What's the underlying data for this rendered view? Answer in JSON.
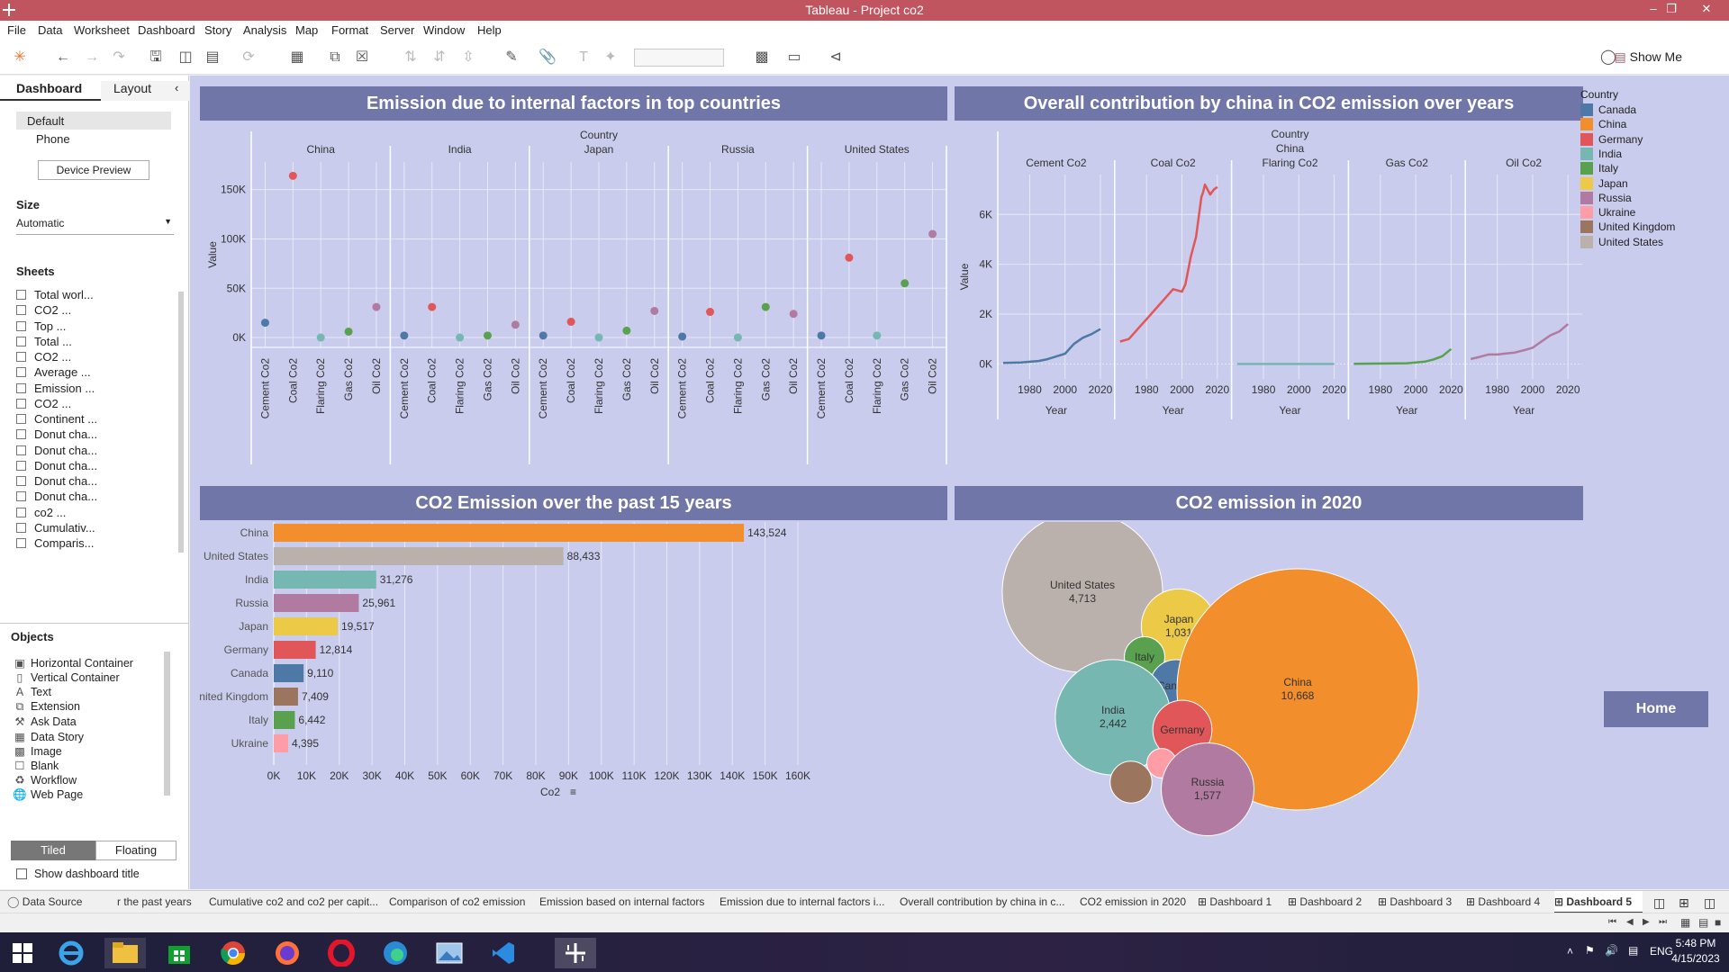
{
  "window": {
    "title": "Tableau - Project co2"
  },
  "menu": [
    "File",
    "Data",
    "Worksheet",
    "Dashboard",
    "Story",
    "Analysis",
    "Map",
    "Format",
    "Server",
    "Window",
    "Help"
  ],
  "toolbar": {
    "show_me": "Show Me"
  },
  "sidebar": {
    "tabs": [
      "Dashboard",
      "Layout"
    ],
    "devices": [
      "Default",
      "Phone"
    ],
    "device_preview": "Device Preview",
    "size_title": "Size",
    "size_value": "Automatic",
    "sheets_title": "Sheets",
    "sheets": [
      "Total worl...",
      "CO2 ...",
      "Top ...",
      "Total ...",
      "CO2 ...",
      "Average ...",
      "Emission ...",
      "CO2 ...",
      "Continent ...",
      "Donut cha...",
      "Donut cha...",
      "Donut cha...",
      "Donut cha...",
      "Donut cha...",
      "co2 ...",
      "Cumulativ...",
      "Comparis..."
    ],
    "objects_title": "Objects",
    "objects": [
      "Horizontal Container",
      "Vertical Container",
      "Text",
      "Extension",
      "Ask Data",
      "Data Story",
      "Image",
      "Blank",
      "Workflow",
      "Web Page"
    ],
    "object_icons": [
      "hbox-icon",
      "vbox-icon",
      "text-icon",
      "extension-icon",
      "ask-data-icon",
      "data-story-icon",
      "image-icon",
      "blank-icon",
      "workflow-icon",
      "web-page-icon"
    ],
    "tiled": "Tiled",
    "floating": "Floating",
    "show_title": "Show dashboard title"
  },
  "panels": {
    "p1_title": "Emission due to internal factors in top countries",
    "p2_title": "Overall contribution by china in CO2 emission over years",
    "p3_title": "CO2 Emission over the past 15 years",
    "p4_title": "CO2 emission in 2020"
  },
  "legend": {
    "title": "Country",
    "items": [
      {
        "name": "Canada",
        "color": "#4e79a7"
      },
      {
        "name": "China",
        "color": "#f28e2b"
      },
      {
        "name": "Germany",
        "color": "#e15759"
      },
      {
        "name": "India",
        "color": "#76b7b2"
      },
      {
        "name": "Italy",
        "color": "#59a14f"
      },
      {
        "name": "Japan",
        "color": "#edc948"
      },
      {
        "name": "Russia",
        "color": "#b07aa1"
      },
      {
        "name": "Ukraine",
        "color": "#ff9da7"
      },
      {
        "name": "United Kingdom",
        "color": "#9c755f"
      },
      {
        "name": "United States",
        "color": "#bab0ac"
      }
    ]
  },
  "home_button": "Home",
  "chart_data": [
    {
      "type": "scatter",
      "title": "Emission due to internal factors in top countries",
      "column_header": "Country",
      "ylabel": "Value",
      "ylim": [
        -10000,
        178000
      ],
      "yticks": [
        "0K",
        "50K",
        "100K",
        "150K"
      ],
      "ytick_values": [
        0,
        50000,
        100000,
        150000
      ],
      "measures": [
        "Cement Co2",
        "Coal Co2",
        "Flaring Co2",
        "Gas Co2",
        "Oil Co2"
      ],
      "measure_colors": [
        "#4e79a7",
        "#e15759",
        "#76b7b2",
        "#59a14f",
        "#b07aa1"
      ],
      "series": [
        {
          "name": "China",
          "values": [
            15000,
            164000,
            0,
            6000,
            31000
          ]
        },
        {
          "name": "India",
          "values": [
            2000,
            31000,
            0,
            2000,
            13000
          ]
        },
        {
          "name": "Japan",
          "values": [
            2000,
            16000,
            0,
            7000,
            27000
          ]
        },
        {
          "name": "Russia",
          "values": [
            1000,
            26000,
            0,
            31000,
            24000
          ]
        },
        {
          "name": "United States",
          "values": [
            2000,
            81000,
            2000,
            55000,
            105000
          ]
        }
      ]
    },
    {
      "type": "line",
      "title": "Overall contribution by china in CO2 emission over years",
      "column_header": "Country",
      "country": "China",
      "ylabel": "Value",
      "xlabel": "Year",
      "ylim": [
        -600,
        7600
      ],
      "yticks": [
        "0K",
        "2K",
        "4K",
        "6K"
      ],
      "ytick_values": [
        0,
        2000,
        4000,
        6000
      ],
      "xlim": [
        1965,
        2025
      ],
      "xticks": [
        "1980",
        "2000",
        "2020"
      ],
      "xtick_values": [
        1980,
        2000,
        2020
      ],
      "series": [
        {
          "name": "Cement Co2",
          "color": "#4e79a7",
          "x": [
            1965,
            1975,
            1985,
            1990,
            1995,
            2000,
            2005,
            2010,
            2015,
            2020
          ],
          "y": [
            40,
            60,
            120,
            190,
            300,
            410,
            800,
            1050,
            1200,
            1400
          ]
        },
        {
          "name": "Coal Co2",
          "color": "#e15759",
          "x": [
            1965,
            1970,
            1975,
            1980,
            1985,
            1990,
            1995,
            2000,
            2002,
            2005,
            2008,
            2011,
            2012,
            2013,
            2016,
            2018,
            2020
          ],
          "y": [
            900,
            1000,
            1400,
            1800,
            2200,
            2600,
            3000,
            2900,
            3200,
            4300,
            5100,
            6700,
            6900,
            7200,
            6800,
            7000,
            7100
          ]
        },
        {
          "name": "Flaring Co2",
          "color": "#76b7b2",
          "x": [
            1965,
            1990,
            2020
          ],
          "y": [
            0,
            0,
            0
          ]
        },
        {
          "name": "Gas Co2",
          "color": "#59a14f",
          "x": [
            1965,
            1995,
            2005,
            2010,
            2015,
            2020
          ],
          "y": [
            5,
            30,
            90,
            180,
            310,
            600
          ]
        },
        {
          "name": "Oil Co2",
          "color": "#b07aa1",
          "x": [
            1965,
            1970,
            1975,
            1980,
            1985,
            1990,
            1995,
            2000,
            2005,
            2010,
            2015,
            2020
          ],
          "y": [
            200,
            280,
            380,
            380,
            420,
            460,
            550,
            650,
            900,
            1150,
            1300,
            1600
          ]
        }
      ]
    },
    {
      "type": "bar",
      "title": "CO2 Emission over the past 15 years",
      "orientation": "horizontal",
      "row_header": "Country",
      "xlabel": "Co2",
      "xlim": [
        0,
        160000
      ],
      "xticks": [
        "0K",
        "10K",
        "20K",
        "30K",
        "40K",
        "50K",
        "60K",
        "70K",
        "80K",
        "90K",
        "100K",
        "110K",
        "120K",
        "130K",
        "140K",
        "150K",
        "160K"
      ],
      "xtick_values": [
        0,
        10000,
        20000,
        30000,
        40000,
        50000,
        60000,
        70000,
        80000,
        90000,
        100000,
        110000,
        120000,
        130000,
        140000,
        150000,
        160000
      ],
      "categories": [
        "China",
        "United States",
        "India",
        "Russia",
        "Japan",
        "Germany",
        "Canada",
        "United Kingdom",
        "Italy",
        "Ukraine"
      ],
      "values": [
        143524,
        88433,
        31276,
        25961,
        19517,
        12814,
        9110,
        7409,
        6442,
        4395
      ],
      "labels": [
        "143,524",
        "88,433",
        "31,276",
        "25,961",
        "19,517",
        "12,814",
        "9,110",
        "7,409",
        "6,442",
        "4,395"
      ],
      "colors": [
        "#f28e2b",
        "#bab0ac",
        "#76b7b2",
        "#b07aa1",
        "#edc948",
        "#e15759",
        "#4e79a7",
        "#9c755f",
        "#59a14f",
        "#ff9da7"
      ]
    },
    {
      "type": "bubble",
      "title": "CO2 emission in 2020",
      "bubbles": [
        {
          "name": "United States",
          "value": 4713,
          "label": "4,713",
          "color": "#bab0ac",
          "show_name": true
        },
        {
          "name": "Japan",
          "value": 1031,
          "label": "1,031",
          "color": "#edc948",
          "show_name": true
        },
        {
          "name": "Italy",
          "value": 300,
          "label": "",
          "color": "#59a14f",
          "show_name": true
        },
        {
          "name": "Canada",
          "value": 500,
          "label": "",
          "color": "#4e79a7",
          "show_name": true
        },
        {
          "name": "China",
          "value": 10668,
          "label": "10,668",
          "color": "#f28e2b",
          "show_name": true
        },
        {
          "name": "India",
          "value": 2442,
          "label": "2,442",
          "color": "#76b7b2",
          "show_name": true
        },
        {
          "name": "Germany",
          "value": 640,
          "label": "",
          "color": "#e15759",
          "show_name": true
        },
        {
          "name": "Ukraine",
          "value": 160,
          "label": "",
          "color": "#ff9da7",
          "show_name": false
        },
        {
          "name": "United Kingdom",
          "value": 320,
          "label": "",
          "color": "#9c755f",
          "show_name": false
        },
        {
          "name": "Russia",
          "value": 1577,
          "label": "1,577",
          "color": "#b07aa1",
          "show_name": true
        }
      ]
    }
  ],
  "sheet_tabs": [
    "Data Source",
    "r the past years",
    "Cumulative co2 and co2 per capit...",
    "Comparison of co2 emission",
    "Emission based on internal factors",
    "Emission due to internal factors i...",
    "Overall contribution by china in c...",
    "CO2 emission in 2020",
    "Dashboard 1",
    "Dashboard 2",
    "Dashboard 3",
    "Dashboard 4",
    "Dashboard 5"
  ],
  "active_tab": "Dashboard 5",
  "tray": {
    "lang": "ENG",
    "time": "5:48 PM",
    "date": "4/15/2023"
  }
}
